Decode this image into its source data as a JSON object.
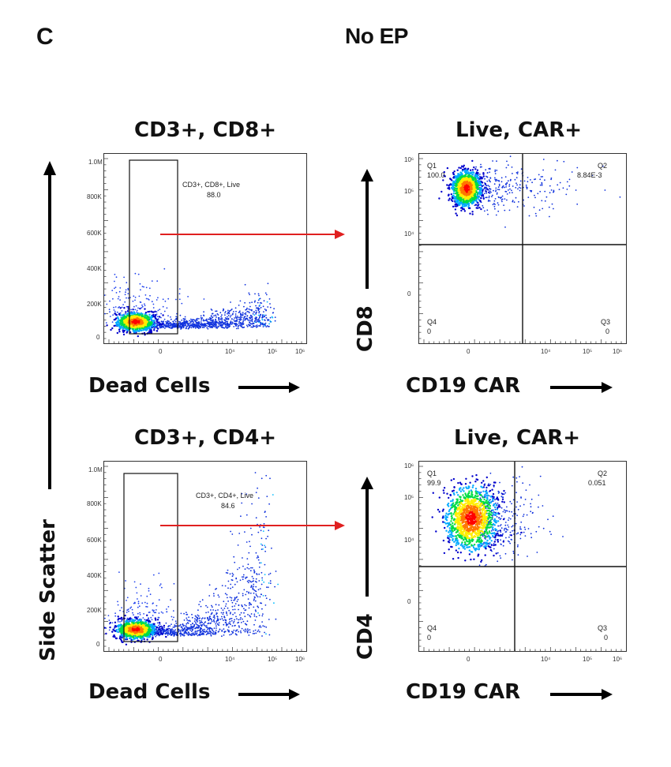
{
  "panel_letter": "C",
  "figure_title": "No EP",
  "shared_y_label": "Side Scatter",
  "chart_data": [
    {
      "id": "cd8-gate",
      "type": "scatter",
      "title": "CD3+, CD8+",
      "xlabel": "Dead Cells",
      "ylabel": "Side Scatter",
      "x_ticks": [
        "0",
        "10⁴",
        "10⁵",
        "10⁶"
      ],
      "y_ticks": [
        "0",
        "200K",
        "400K",
        "600K",
        "800K",
        "1.0M"
      ],
      "gate": {
        "name": "CD3+, CD8+, Live",
        "percent": "88.0"
      },
      "populations": [
        {
          "description": "live cells",
          "x_center": 0,
          "y_center": 50000
        },
        {
          "description": "dead cells tail",
          "x_from": 0,
          "x_to": 100000,
          "y_to": 200000
        }
      ]
    },
    {
      "id": "cd8-car",
      "type": "scatter",
      "title": "Live, CAR+",
      "xlabel": "CD19 CAR",
      "ylabel": "CD8",
      "x_ticks": [
        "0",
        "10⁴",
        "10⁵",
        "10⁶"
      ],
      "y_ticks": [
        "0",
        "10⁴",
        "10⁵",
        "10⁶"
      ],
      "quadrants": [
        {
          "name": "Q1",
          "value": "100.0"
        },
        {
          "name": "Q2",
          "value": "8.84E-3"
        },
        {
          "name": "Q3",
          "value": "0"
        },
        {
          "name": "Q4",
          "value": "0"
        }
      ]
    },
    {
      "id": "cd4-gate",
      "type": "scatter",
      "title": "CD3+, CD4+",
      "xlabel": "Dead Cells",
      "ylabel": "Side Scatter",
      "x_ticks": [
        "0",
        "10⁴",
        "10⁵",
        "10⁶"
      ],
      "y_ticks": [
        "0",
        "200K",
        "400K",
        "600K",
        "800K",
        "1.0M"
      ],
      "gate": {
        "name": "CD3+, CD4+, Live",
        "percent": "84.6"
      },
      "populations": [
        {
          "description": "live cells",
          "x_center": 0,
          "y_center": 50000
        },
        {
          "description": "dead cells tail",
          "x_from": 0,
          "x_to": 100000,
          "y_to": 650000
        }
      ]
    },
    {
      "id": "cd4-car",
      "type": "scatter",
      "title": "Live, CAR+",
      "xlabel": "CD19 CAR",
      "ylabel": "CD4",
      "x_ticks": [
        "0",
        "10⁴",
        "10⁵",
        "10⁶"
      ],
      "y_ticks": [
        "0",
        "10⁴",
        "10⁵",
        "10⁶"
      ],
      "quadrants": [
        {
          "name": "Q1",
          "value": "99.9"
        },
        {
          "name": "Q2",
          "value": "0.051"
        },
        {
          "name": "Q3",
          "value": "0"
        },
        {
          "name": "Q4",
          "value": "0"
        }
      ]
    }
  ],
  "colors": {
    "arrow_red": "#e02020",
    "density": [
      "#0000cc",
      "#00aaff",
      "#00dd44",
      "#ffee00",
      "#ff7700",
      "#ff0000"
    ]
  }
}
